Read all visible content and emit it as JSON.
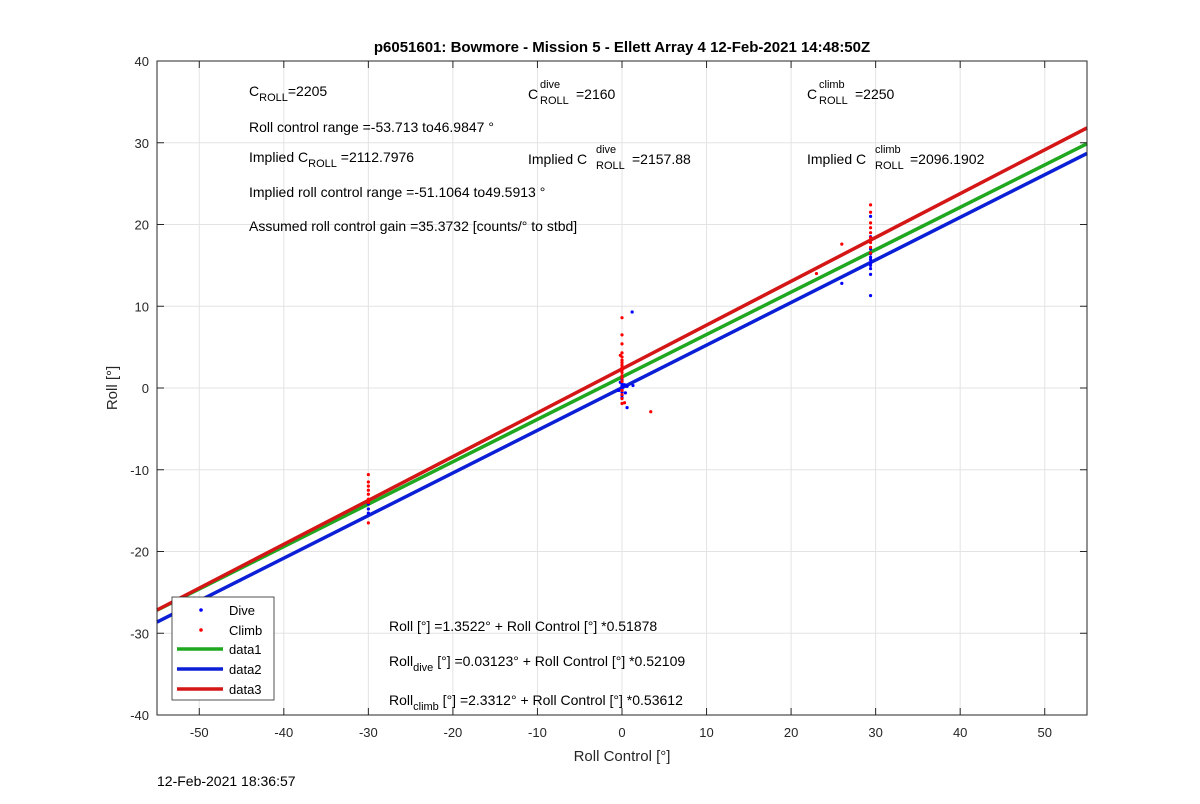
{
  "chart_data": {
    "type": "scatter",
    "title": "p6051601: Bowmore - Mission 5 - Ellett Array 4 12-Feb-2021 14:48:50Z",
    "xlabel": "Roll Control [°]",
    "ylabel": "Roll [°]",
    "xlim": [
      -55,
      55
    ],
    "ylim": [
      -40,
      40
    ],
    "xticks": [
      -50,
      -40,
      -30,
      -20,
      -10,
      0,
      10,
      20,
      30,
      40,
      50
    ],
    "yticks": [
      -40,
      -30,
      -20,
      -10,
      0,
      10,
      20,
      30,
      40
    ],
    "grid": true,
    "legend_position": "bottom-left",
    "colors": {
      "dive": "#0000ff",
      "climb": "#ff0000",
      "data1": "#1fa81f",
      "data2": "#0b1fd6",
      "data3": "#d41616"
    },
    "series": [
      {
        "name": "Dive",
        "kind": "points",
        "color": "#0000ff",
        "x": [
          -30,
          -30,
          -30,
          0,
          0,
          0,
          0,
          0,
          0,
          0,
          0,
          0,
          0,
          0,
          0,
          0.3,
          -0.4,
          0.6,
          1.2,
          0.6,
          1.3,
          0.4,
          -0.2,
          26.0,
          29.4,
          29.4,
          29.4,
          29.4,
          29.4,
          29.4,
          29.4,
          29.4,
          29.4,
          29.4,
          29.4
        ],
        "y": [
          -14.2,
          -14.8,
          -15.3,
          0.2,
          -0.2,
          0.5,
          -0.5,
          0.1,
          0.8,
          -0.9,
          0.3,
          -0.3,
          1.0,
          -1.2,
          0.0,
          0.4,
          -0.3,
          0.2,
          9.3,
          -2.4,
          0.3,
          -0.6,
          0.7,
          12.8,
          11.3,
          13.9,
          14.6,
          15.0,
          15.3,
          15.7,
          16.0,
          16.4,
          17.0,
          18.5,
          21.0
        ]
      },
      {
        "name": "Climb",
        "kind": "points",
        "color": "#ff0000",
        "x": [
          -30,
          -30,
          -30,
          -30,
          -30,
          -30,
          -30,
          -30,
          0,
          0,
          0,
          0,
          0,
          0,
          0,
          0,
          0,
          0,
          0,
          0,
          0,
          0,
          0,
          0,
          0,
          0,
          0.3,
          -0.2,
          3.4,
          23.0,
          26.0,
          29.4,
          29.4,
          29.4,
          29.4,
          29.4,
          29.4,
          29.4,
          29.4,
          29.4
        ],
        "y": [
          -10.6,
          -11.5,
          -12.0,
          -12.5,
          -13.0,
          -13.6,
          -14.0,
          -16.5,
          8.6,
          6.5,
          5.4,
          4.3,
          3.8,
          3.4,
          3.1,
          2.8,
          2.5,
          2.2,
          1.9,
          1.5,
          1.2,
          0.8,
          -0.3,
          -0.8,
          -1.3,
          -1.9,
          -1.8,
          4.0,
          -2.9,
          14.0,
          17.6,
          16.5,
          17.2,
          17.8,
          18.4,
          19.0,
          19.6,
          20.2,
          21.5,
          22.4
        ]
      },
      {
        "name": "data1",
        "kind": "line",
        "color": "#1fa81f",
        "x": [
          -55,
          55
        ],
        "y": [
          -27.1814,
          29.8862
        ]
      },
      {
        "name": "data2",
        "kind": "line",
        "color": "#0b1fd6",
        "x": [
          -55,
          55
        ],
        "y": [
          -28.6287,
          28.6912
        ]
      },
      {
        "name": "data3",
        "kind": "line",
        "color": "#d41616",
        "x": [
          -55,
          55
        ],
        "y": [
          -27.1554,
          31.8178
        ]
      }
    ],
    "annotations": {
      "c_roll_main": "C",
      "c_roll_sub": "ROLL",
      "c_roll_val": "=2205",
      "c_dive_main": "C",
      "c_dive_sup": "dive",
      "c_dive_sub": "ROLL",
      "c_dive_val": " =2160",
      "c_climb_main": "C",
      "c_climb_sup": "climb",
      "c_climb_sub": "ROLL",
      "c_climb_val": " =2250",
      "roll_control_range": "Roll control range =-53.713 to46.9847 °",
      "implied_c_roll_pre": "Implied C",
      "implied_c_roll_sub": "ROLL",
      "implied_c_roll_val": " =2112.7976",
      "implied_c_dive_pre": "Implied C",
      "implied_c_dive_sup": "dive",
      "implied_c_dive_sub": "ROLL",
      "implied_c_dive_val": " =2157.88",
      "implied_c_climb_pre": "Implied C",
      "implied_c_climb_sup": "climb",
      "implied_c_climb_sub": "ROLL",
      "implied_c_climb_val": " =2096.1902",
      "implied_range": "Implied roll control range =-51.1064 to49.5913 °",
      "assumed_gain": "Assumed roll control gain =35.3732 [counts/° to stbd]",
      "fit_all": "Roll [°] =1.3522° + Roll Control [°] *0.51878",
      "fit_dive_pre": "Roll",
      "fit_dive_sub": "dive",
      "fit_dive_post": " [°] =0.03123° + Roll Control [°] *0.52109",
      "fit_climb_pre": "Roll",
      "fit_climb_sub": "climb",
      "fit_climb_post": " [°] =2.3312° + Roll Control [°] *0.53612"
    }
  },
  "footer": {
    "timestamp": "12-Feb-2021 18:36:57"
  }
}
